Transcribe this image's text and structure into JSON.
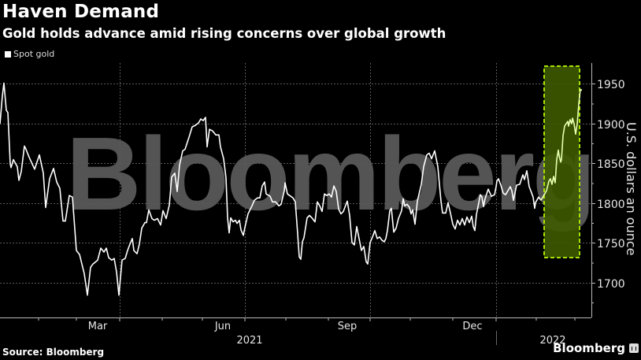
{
  "header": {
    "title": "Haven Demand",
    "subtitle": "Gold holds advance amid rising concerns over global growth"
  },
  "legend": {
    "label": "Spot gold",
    "color": "#ffffff"
  },
  "footer": {
    "source": "Source: Bloomberg",
    "brand": "Bloomberg"
  },
  "colors": {
    "background": "#000000",
    "line": "#ffffff",
    "highlight_line": "#e6ffb0",
    "highlight_fill": "#3d5a00",
    "highlight_border": "#a8e000",
    "grid": "#5a5a5a"
  },
  "chart_data": {
    "type": "line",
    "title": "Haven Demand",
    "subtitle": "Gold holds advance amid rising concerns over global growth",
    "xlabel": "",
    "ylabel": "U.S. dollars an ounce",
    "ylim": [
      1675,
      1975
    ],
    "yticks": [
      1700,
      1750,
      1800,
      1850,
      1900,
      1950
    ],
    "xticks": [
      "Mar",
      "Jun",
      "Sep",
      "Dec"
    ],
    "year_labels": [
      "2021",
      "2022"
    ],
    "legend": [
      "Spot gold"
    ],
    "legend_position": "top-left",
    "grid": true,
    "watermark": "Bloomberg",
    "highlight": {
      "from": "2022-01-10",
      "to": "2022-02-22",
      "ymin": 1733,
      "ymax": 1972
    },
    "series": [
      {
        "name": "Spot gold",
        "points": [
          [
            0,
            1900
          ],
          [
            3,
            1935
          ],
          [
            5,
            1951
          ],
          [
            8,
            1917
          ],
          [
            10,
            1914
          ],
          [
            13,
            1850
          ],
          [
            14,
            1845
          ],
          [
            17,
            1855
          ],
          [
            22,
            1846
          ],
          [
            24,
            1829
          ],
          [
            27,
            1840
          ],
          [
            31,
            1872
          ],
          [
            33,
            1868
          ],
          [
            37,
            1858
          ],
          [
            44,
            1843
          ],
          [
            50,
            1861
          ],
          [
            55,
            1838
          ],
          [
            58,
            1795
          ],
          [
            63,
            1831
          ],
          [
            68,
            1844
          ],
          [
            72,
            1827
          ],
          [
            76,
            1819
          ],
          [
            80,
            1778
          ],
          [
            83,
            1778
          ],
          [
            88,
            1810
          ],
          [
            92,
            1808
          ],
          [
            97,
            1741
          ],
          [
            101,
            1736
          ],
          [
            107,
            1712
          ],
          [
            111,
            1685
          ],
          [
            115,
            1720
          ],
          [
            118,
            1724
          ],
          [
            124,
            1729
          ],
          [
            128,
            1744
          ],
          [
            132,
            1739
          ],
          [
            135,
            1744
          ],
          [
            138,
            1732
          ],
          [
            142,
            1729
          ],
          [
            145,
            1731
          ],
          [
            148,
            1714
          ],
          [
            151,
            1685
          ],
          [
            155,
            1729
          ],
          [
            159,
            1731
          ],
          [
            162,
            1741
          ],
          [
            165,
            1749
          ],
          [
            168,
            1756
          ],
          [
            170,
            1741
          ],
          [
            174,
            1737
          ],
          [
            177,
            1749
          ],
          [
            180,
            1769
          ],
          [
            184,
            1776
          ],
          [
            186,
            1776
          ],
          [
            189,
            1792
          ],
          [
            193,
            1781
          ],
          [
            196,
            1779
          ],
          [
            200,
            1781
          ],
          [
            204,
            1773
          ],
          [
            207,
            1791
          ],
          [
            211,
            1781
          ],
          [
            215,
            1798
          ],
          [
            218,
            1833
          ],
          [
            222,
            1838
          ],
          [
            225,
            1815
          ],
          [
            228,
            1848
          ],
          [
            232,
            1866
          ],
          [
            235,
            1868
          ],
          [
            240,
            1883
          ],
          [
            244,
            1896
          ],
          [
            248,
            1898
          ],
          [
            252,
            1901
          ],
          [
            255,
            1906
          ],
          [
            258,
            1904
          ],
          [
            261,
            1908
          ],
          [
            263,
            1871
          ],
          [
            266,
            1893
          ],
          [
            270,
            1891
          ],
          [
            274,
            1886
          ],
          [
            278,
            1886
          ],
          [
            280,
            1871
          ],
          [
            284,
            1856
          ],
          [
            287,
            1832
          ],
          [
            289,
            1782
          ],
          [
            291,
            1763
          ],
          [
            293,
            1782
          ],
          [
            296,
            1777
          ],
          [
            299,
            1779
          ],
          [
            301,
            1775
          ],
          [
            304,
            1779
          ],
          [
            306,
            1767
          ],
          [
            309,
            1760
          ],
          [
            311,
            1770
          ],
          [
            315,
            1787
          ],
          [
            320,
            1797
          ],
          [
            323,
            1804
          ],
          [
            327,
            1807
          ],
          [
            330,
            1807
          ],
          [
            333,
            1822
          ],
          [
            336,
            1827
          ],
          [
            338,
            1812
          ],
          [
            343,
            1809
          ],
          [
            346,
            1802
          ],
          [
            350,
            1802
          ],
          [
            354,
            1797
          ],
          [
            357,
            1799
          ],
          [
            361,
            1816
          ],
          [
            362,
            1826
          ],
          [
            365,
            1812
          ],
          [
            372,
            1807
          ],
          [
            375,
            1802
          ],
          [
            378,
            1762
          ],
          [
            380,
            1733
          ],
          [
            382,
            1730
          ],
          [
            384,
            1752
          ],
          [
            386,
            1757
          ],
          [
            390,
            1782
          ],
          [
            393,
            1785
          ],
          [
            396,
            1782
          ],
          [
            400,
            1777
          ],
          [
            403,
            1802
          ],
          [
            406,
            1797
          ],
          [
            409,
            1790
          ],
          [
            412,
            1812
          ],
          [
            415,
            1810
          ],
          [
            418,
            1812
          ],
          [
            421,
            1808
          ],
          [
            424,
            1822
          ],
          [
            427,
            1815
          ],
          [
            430,
            1793
          ],
          [
            433,
            1787
          ],
          [
            436,
            1790
          ],
          [
            441,
            1803
          ],
          [
            444,
            1785
          ],
          [
            447,
            1751
          ],
          [
            450,
            1748
          ],
          [
            453,
            1771
          ],
          [
            456,
            1756
          ],
          [
            459,
            1741
          ],
          [
            462,
            1746
          ],
          [
            465,
            1727
          ],
          [
            467,
            1724
          ],
          [
            470,
            1751
          ],
          [
            473,
            1758
          ],
          [
            476,
            1766
          ],
          [
            479,
            1756
          ],
          [
            482,
            1758
          ],
          [
            485,
            1754
          ],
          [
            488,
            1752
          ],
          [
            490,
            1756
          ],
          [
            492,
            1766
          ],
          [
            495,
            1791
          ],
          [
            497,
            1794
          ],
          [
            500,
            1764
          ],
          [
            503,
            1769
          ],
          [
            506,
            1781
          ],
          [
            510,
            1791
          ],
          [
            512,
            1806
          ],
          [
            514,
            1797
          ],
          [
            517,
            1799
          ],
          [
            520,
            1795
          ],
          [
            522,
            1787
          ],
          [
            524,
            1792
          ],
          [
            527,
            1774
          ],
          [
            530,
            1803
          ],
          [
            535,
            1824
          ],
          [
            538,
            1846
          ],
          [
            542,
            1861
          ],
          [
            545,
            1863
          ],
          [
            548,
            1856
          ],
          [
            552,
            1866
          ],
          [
            556,
            1846
          ],
          [
            560,
            1803
          ],
          [
            562,
            1788
          ],
          [
            566,
            1788
          ],
          [
            569,
            1801
          ],
          [
            572,
            1788
          ],
          [
            575,
            1774
          ],
          [
            578,
            1768
          ],
          [
            581,
            1779
          ],
          [
            584,
            1773
          ],
          [
            587,
            1781
          ],
          [
            590,
            1773
          ],
          [
            593,
            1783
          ],
          [
            596,
            1776
          ],
          [
            599,
            1784
          ],
          [
            601,
            1771
          ],
          [
            603,
            1766
          ],
          [
            605,
            1786
          ],
          [
            607,
            1796
          ],
          [
            610,
            1811
          ],
          [
            612,
            1808
          ],
          [
            614,
            1796
          ],
          [
            616,
            1806
          ],
          [
            620,
            1818
          ],
          [
            624,
            1809
          ],
          [
            628,
            1811
          ],
          [
            630,
            1821
          ],
          [
            631,
            1828
          ],
          [
            633,
            1831
          ],
          [
            636,
            1823
          ],
          [
            639,
            1813
          ],
          [
            642,
            1811
          ],
          [
            645,
            1816
          ],
          [
            648,
            1821
          ],
          [
            650,
            1816
          ],
          [
            652,
            1804
          ],
          [
            656,
            1823
          ],
          [
            660,
            1824
          ],
          [
            664,
            1836
          ],
          [
            666,
            1830
          ],
          [
            669,
            1841
          ],
          [
            672,
            1821
          ],
          [
            674,
            1816
          ],
          [
            677,
            1808
          ],
          [
            679,
            1794
          ],
          [
            680,
            1801
          ],
          [
            684,
            1808
          ],
          [
            687,
            1804
          ]
        ]
      },
      {
        "name": "Spot gold (highlighted)",
        "points": [
          [
            687,
            1804
          ],
          [
            691,
            1811
          ],
          [
            694,
            1816
          ],
          [
            697,
            1828
          ],
          [
            699,
            1831
          ],
          [
            701,
            1824
          ],
          [
            703,
            1834
          ],
          [
            705,
            1826
          ],
          [
            707,
            1855
          ],
          [
            709,
            1867
          ],
          [
            710,
            1860
          ],
          [
            712,
            1852
          ],
          [
            713,
            1855
          ],
          [
            715,
            1885
          ],
          [
            717,
            1897
          ],
          [
            719,
            1900
          ],
          [
            721,
            1903
          ],
          [
            722,
            1897
          ],
          [
            724,
            1905
          ],
          [
            726,
            1900
          ],
          [
            727,
            1907
          ],
          [
            729,
            1900
          ],
          [
            731,
            1887
          ],
          [
            733,
            1900
          ],
          [
            735,
            1925
          ],
          [
            737,
            1943
          ],
          [
            739,
            1942
          ]
        ]
      }
    ],
    "x_units": "pixel offset (0 = early Jan 2021, 630 = Jan 1 2022); one month ≈ 53px"
  }
}
